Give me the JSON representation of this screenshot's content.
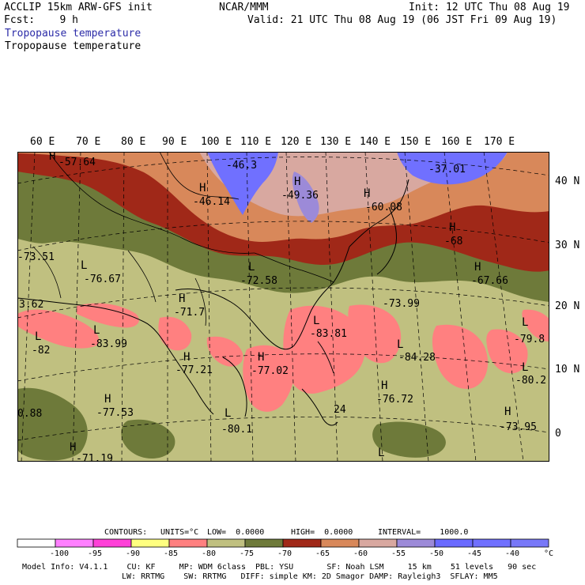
{
  "header": {
    "model": "ACCLIP 15km ARW-GFS init",
    "center": "NCAR/MMM",
    "init": "Init: 12 UTC Thu 08 Aug 19",
    "fcst": "Fcst:    9 h",
    "valid": "Valid: 21 UTC Thu 08 Aug 19 (06 JST Fri 09 Aug 19)",
    "field_color": "Tropopause temperature",
    "field_contour": "Tropopause temperature"
  },
  "axes": {
    "lon_labels": [
      "60 E",
      "70 E",
      "80 E",
      "90 E",
      "100 E",
      "110 E",
      "120 E",
      "130 E",
      "140 E",
      "150 E",
      "160 E",
      "170 E"
    ],
    "lat_labels": [
      "40 N",
      "30 N",
      "20 N",
      "10 N",
      "0"
    ]
  },
  "extrema": [
    {
      "type": "H",
      "value": "-57.64"
    },
    {
      "type": "",
      "value": "-46.3"
    },
    {
      "type": "",
      "value": "-37.01"
    },
    {
      "type": "H",
      "value": "-46.14"
    },
    {
      "type": "H",
      "value": "-49.36"
    },
    {
      "type": "H",
      "value": "-60.08"
    },
    {
      "type": "H",
      "value": "-68"
    },
    {
      "type": "",
      "value": "-73.51"
    },
    {
      "type": "L",
      "value": "-76.67"
    },
    {
      "type": "L",
      "value": "-72.58"
    },
    {
      "type": "H",
      "value": "-67.66"
    },
    {
      "type": "",
      "value": "-73.99"
    },
    {
      "type": "",
      "value": "3.62"
    },
    {
      "type": "H",
      "value": "-71.7"
    },
    {
      "type": "L",
      "value": "-82"
    },
    {
      "type": "L",
      "value": "-83.99"
    },
    {
      "type": "L",
      "value": "-83.81"
    },
    {
      "type": "L",
      "value": "-79.8"
    },
    {
      "type": "L",
      "value": "-84.28"
    },
    {
      "type": "H",
      "value": "-77.21"
    },
    {
      "type": "H",
      "value": "-77.02"
    },
    {
      "type": "L",
      "value": "-80.2"
    },
    {
      "type": "",
      "value": "0.88"
    },
    {
      "type": "H",
      "value": "-77.53"
    },
    {
      "type": "H",
      "value": "-76.72"
    },
    {
      "type": "",
      "value": "24"
    },
    {
      "type": "L",
      "value": "-80.1"
    },
    {
      "type": "H",
      "value": "-73.95"
    },
    {
      "type": "H",
      "value": "-71.19"
    },
    {
      "type": "L",
      "value": ""
    }
  ],
  "contours_line": {
    "contours": "CONTOURS:",
    "units": "UNITS=°C",
    "low": "LOW=  0.0000",
    "high": "HIGH=  0.0000",
    "interval": "INTERVAL=    1000.0"
  },
  "colorbar": {
    "colors": [
      "#ffffff",
      "#ff80ff",
      "#ff40d8",
      "#ffff80",
      "#ff8080",
      "#c0c080",
      "#6e7a3a",
      "#a02818",
      "#d8885a",
      "#d8a8a0",
      "#9c8ad8",
      "#6a6aff",
      "#7070ff",
      "#7878f8"
    ],
    "labels": [
      "-100",
      "-95",
      "-90",
      "-85",
      "-80",
      "-75",
      "-70",
      "-65",
      "-60",
      "-55",
      "-50",
      "-45",
      "-40"
    ],
    "unit": "°C"
  },
  "footer": {
    "line1": "Model Info: V4.1.1    CU: KF     MP: WDM 6class  PBL: YSU       SF: Noah LSM     15 km    51 levels   90 sec",
    "line2": "LW: RRTMG    SW: RRTMG   DIFF: simple KM: 2D Smagor DAMP: Rayleigh3  SFLAY: MM5"
  },
  "colors": {
    "band_strat_cold": "#7070ff",
    "band_strat": "#d8a8a0",
    "band_mid": "#d8885a",
    "band_jet": "#a02818",
    "band_olive": "#6e7a3a",
    "band_tropical": "#c0c080",
    "band_cold_tropopause": "#ff8080"
  }
}
